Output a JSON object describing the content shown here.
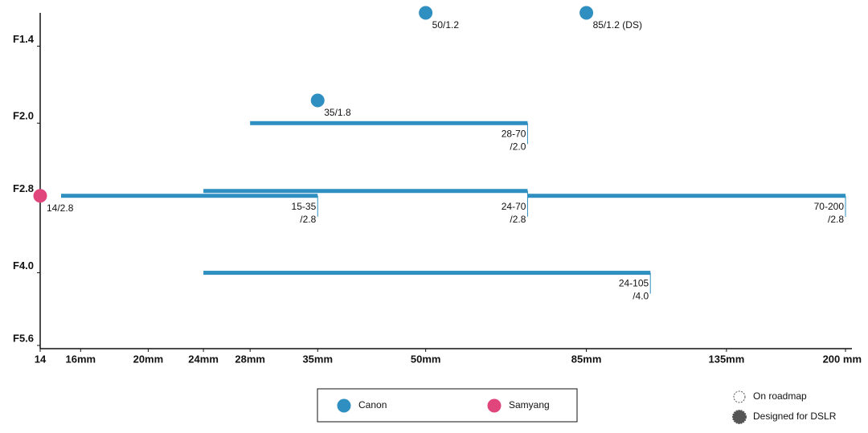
{
  "chart_data": {
    "type": "lens-roadmap",
    "xscale": "log",
    "yscale": "log",
    "xlim": [
      14,
      200
    ],
    "ylim": [
      5.6,
      1.2
    ],
    "xticks": [
      {
        "value": 14,
        "label": "14"
      },
      {
        "value": 16,
        "label": "16mm"
      },
      {
        "value": 20,
        "label": "20mm"
      },
      {
        "value": 24,
        "label": "24mm"
      },
      {
        "value": 28,
        "label": "28mm"
      },
      {
        "value": 35,
        "label": "35mm"
      },
      {
        "value": 50,
        "label": "50mm"
      },
      {
        "value": 85,
        "label": "85mm"
      },
      {
        "value": 135,
        "label": "135mm"
      },
      {
        "value": 200,
        "label": "200 mm"
      }
    ],
    "yticks": [
      {
        "value": 1.4,
        "label": "F1.4"
      },
      {
        "value": 2.0,
        "label": "F2.0"
      },
      {
        "value": 2.8,
        "label": "F2.8"
      },
      {
        "value": 4.0,
        "label": "F4.0"
      },
      {
        "value": 5.6,
        "label": "F5.6"
      }
    ],
    "series": [
      {
        "name": "Canon",
        "color": "#2e8fc0",
        "points": [
          {
            "x": 35,
            "y": 1.8,
            "label": [
              "35/1.8"
            ]
          },
          {
            "x": 50,
            "y": 1.2,
            "label": [
              "50/1.2"
            ]
          },
          {
            "x": 85,
            "y": 1.2,
            "label": [
              "85/1.2 (DS)"
            ]
          }
        ],
        "ranges": [
          {
            "x": [
              28,
              70
            ],
            "y": 2.0,
            "label": [
              "28-70",
              "/2.0"
            ]
          },
          {
            "x": [
              15,
              35
            ],
            "y": 2.8,
            "label": [
              "15-35",
              "/2.8"
            ]
          },
          {
            "x": [
              24,
              70
            ],
            "y": 2.8,
            "label": [
              "24-70",
              "/2.8"
            ]
          },
          {
            "x": [
              70,
              200
            ],
            "y": 2.8,
            "label": [
              "70-200",
              "/2.8"
            ]
          },
          {
            "x": [
              24,
              105
            ],
            "y": 4.0,
            "label": [
              "24-105",
              "/4.0"
            ]
          }
        ]
      },
      {
        "name": "Samyang",
        "color": "#e0457b",
        "points": [
          {
            "x": 14,
            "y": 2.8,
            "label": [
              "14/2.8"
            ]
          }
        ],
        "ranges": []
      }
    ],
    "status_legend": [
      "On roadmap",
      "Designed for DSLR"
    ]
  }
}
